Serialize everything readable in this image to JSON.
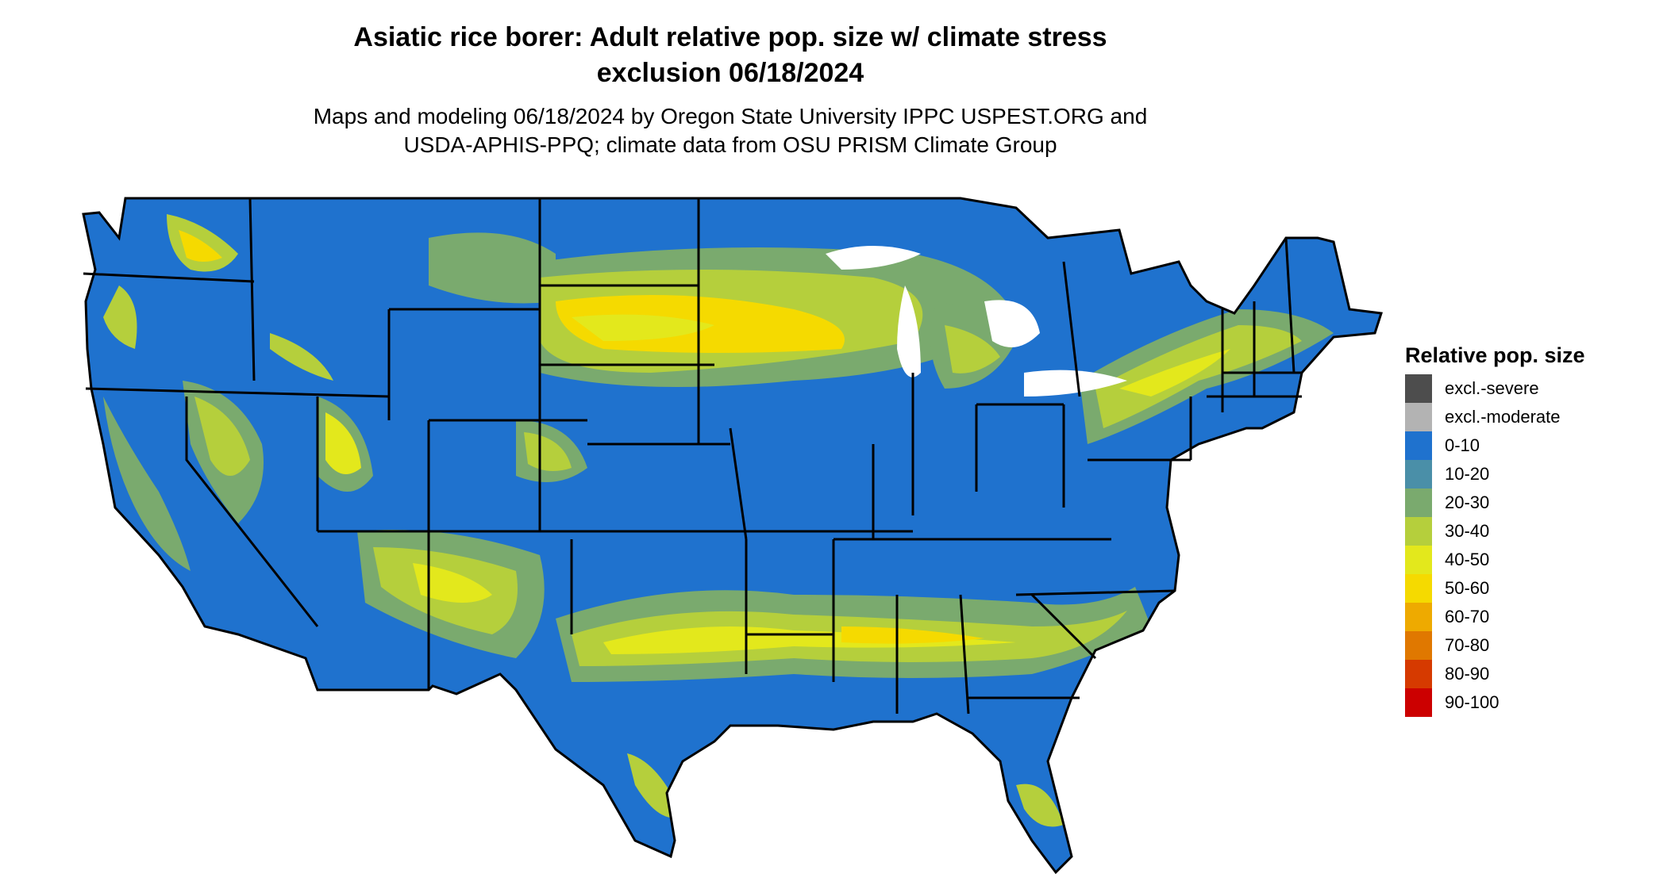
{
  "title": {
    "line1": "Asiatic rice borer: Adult relative pop. size w/ climate stress",
    "line2": "exclusion 06/18/2024"
  },
  "subtitle": {
    "line1": "Maps and modeling 06/18/2024 by Oregon State University IPPC USPEST.ORG and",
    "line2": "USDA-APHIS-PPQ; climate data from OSU PRISM Climate Group"
  },
  "map": {
    "base_color": "#1F72CE",
    "border_color": "#000000"
  },
  "legend": {
    "title": "Relative pop. size",
    "items": [
      {
        "label": "excl.-severe",
        "color": "#4D4D4D"
      },
      {
        "label": "excl.-moderate",
        "color": "#B3B3B3"
      },
      {
        "label": "0-10",
        "color": "#1F72CE"
      },
      {
        "label": "10-20",
        "color": "#4A8FA8"
      },
      {
        "label": "20-30",
        "color": "#7AAA6E"
      },
      {
        "label": "30-40",
        "color": "#B5CF3C"
      },
      {
        "label": "40-50",
        "color": "#E3E81C"
      },
      {
        "label": "50-60",
        "color": "#F5DA00"
      },
      {
        "label": "60-70",
        "color": "#EEAA00"
      },
      {
        "label": "70-80",
        "color": "#E07800"
      },
      {
        "label": "80-90",
        "color": "#D63A00"
      },
      {
        "label": "90-100",
        "color": "#CC0000"
      }
    ]
  }
}
